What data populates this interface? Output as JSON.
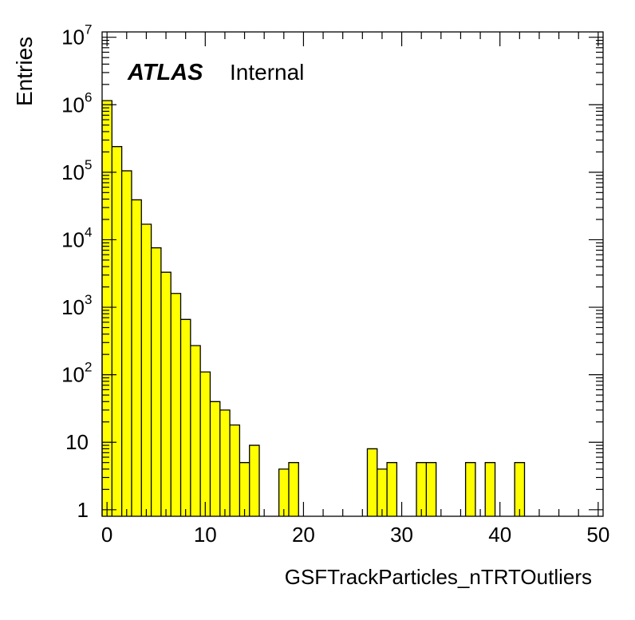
{
  "chart_data": {
    "type": "bar",
    "title": "",
    "xlabel": "GSFTrackParticles_nTRTOutliers",
    "ylabel": "Entries",
    "label": {
      "experiment": "ATLAS",
      "status": "Internal"
    },
    "log_y": true,
    "xlim": [
      -0.5,
      50.5
    ],
    "ylim": [
      0.8,
      12000000
    ],
    "bin_width": 1,
    "bar_color": "#ffff00",
    "line_color": "#000000",
    "x_ticks": [
      0,
      10,
      20,
      30,
      40,
      50
    ],
    "x_tick_labels": [
      "0",
      "10",
      "20",
      "30",
      "40",
      "50"
    ],
    "y_ticks": [
      {
        "value": 1,
        "base": "1",
        "exp": ""
      },
      {
        "value": 10,
        "base": "10",
        "exp": ""
      },
      {
        "value": 100,
        "base": "10",
        "exp": "2"
      },
      {
        "value": 1000,
        "base": "10",
        "exp": "3"
      },
      {
        "value": 10000,
        "base": "10",
        "exp": "4"
      },
      {
        "value": 100000,
        "base": "10",
        "exp": "5"
      },
      {
        "value": 1000000,
        "base": "10",
        "exp": "6"
      },
      {
        "value": 10000000,
        "base": "10",
        "exp": "7"
      }
    ],
    "bin_centers": [
      0,
      1,
      2,
      3,
      4,
      5,
      6,
      7,
      8,
      9,
      10,
      11,
      12,
      13,
      14,
      15,
      16,
      17,
      18,
      19,
      20,
      21,
      22,
      23,
      24,
      25,
      26,
      27,
      28,
      29,
      30,
      31,
      32,
      33,
      34,
      35,
      36,
      37,
      38,
      39,
      40,
      41,
      42,
      43,
      44,
      45,
      46,
      47,
      48,
      49,
      50
    ],
    "values": [
      1150000,
      240000,
      105000,
      39000,
      17000,
      7600,
      3300,
      1600,
      660,
      270,
      110,
      40,
      30,
      18,
      5,
      9,
      0,
      0,
      4,
      5,
      0,
      0,
      0,
      0,
      0,
      0,
      0,
      8,
      4,
      5,
      0,
      0,
      5,
      5,
      0,
      0,
      0,
      5,
      0,
      5,
      0,
      0,
      5,
      0,
      0,
      0,
      0,
      0,
      0,
      0,
      0
    ],
    "grid": false,
    "legend": "none"
  }
}
